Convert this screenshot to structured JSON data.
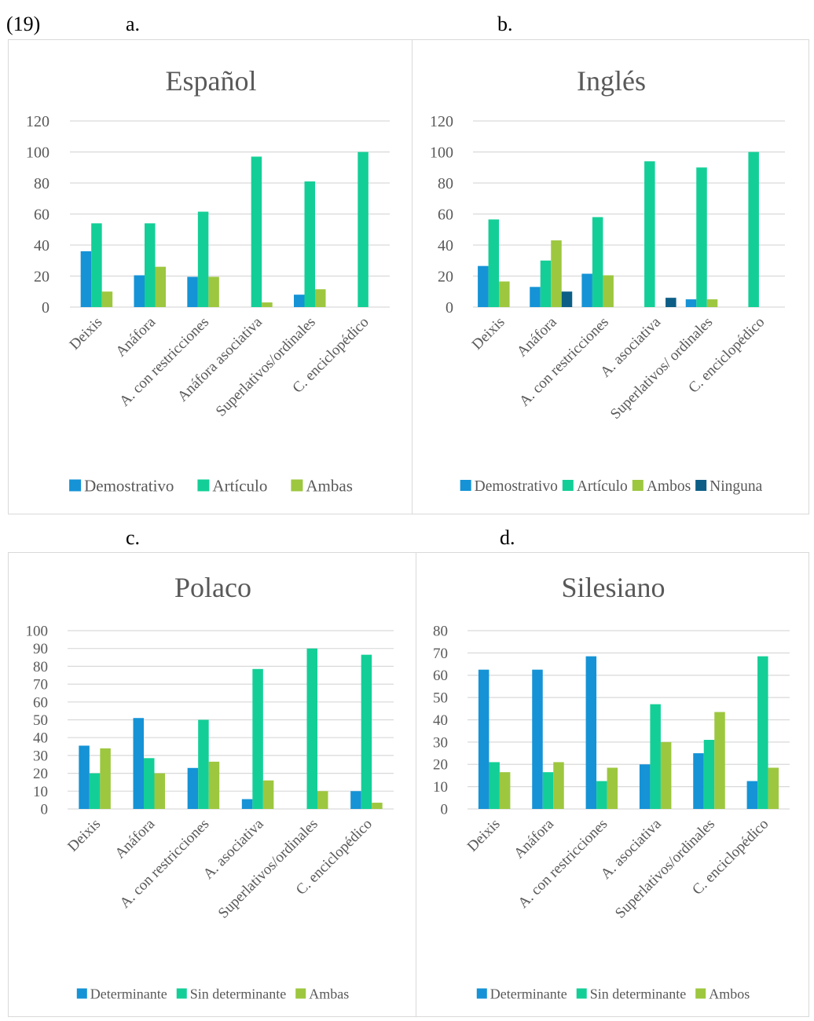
{
  "example_number": "(19)",
  "panel_labels": [
    "a.",
    "b.",
    "c.",
    "d."
  ],
  "colors": {
    "blue": "#1593d6",
    "teal": "#13cf97",
    "green": "#9dc73f",
    "navy": "#0c5e86"
  },
  "chart_data": [
    {
      "type": "bar",
      "title": "Español",
      "categories": [
        "Deixis",
        "Anáfora",
        "A. con restricciones",
        "Anáfora asociativa",
        "Superlativos/ordinales",
        "C. enciclopédico"
      ],
      "series": [
        {
          "name": "Demostrativo",
          "color": "#1593d6",
          "values": [
            36,
            20.5,
            19.5,
            0,
            8,
            0
          ]
        },
        {
          "name": "Artículo",
          "color": "#13cf97",
          "values": [
            54,
            54,
            61.5,
            97,
            81,
            100
          ]
        },
        {
          "name": "Ambas",
          "color": "#9dc73f",
          "values": [
            10,
            26,
            19.5,
            3,
            11.5,
            0
          ]
        }
      ],
      "ylim": [
        0,
        120
      ],
      "yticks": [
        0,
        20,
        40,
        60,
        80,
        100,
        120
      ],
      "grid": true,
      "legend": "bottom",
      "xlabel": "",
      "ylabel": ""
    },
    {
      "type": "bar",
      "title": "Inglés",
      "categories": [
        "Deixis",
        "Anáfora",
        "A. con restricciones",
        "A. asociativa",
        "Superlativos/ ordinales",
        "C. enciclopédico"
      ],
      "series": [
        {
          "name": "Demostrativo",
          "color": "#1593d6",
          "values": [
            26.5,
            13,
            21.5,
            0,
            5,
            0
          ]
        },
        {
          "name": "Artículo",
          "color": "#13cf97",
          "values": [
            56.5,
            30,
            58,
            94,
            90,
            100
          ]
        },
        {
          "name": "Ambos",
          "color": "#9dc73f",
          "values": [
            16.5,
            43,
            20.5,
            0,
            5,
            0
          ]
        },
        {
          "name": "Ninguna",
          "color": "#0c5e86",
          "values": [
            0,
            10,
            0,
            6,
            0,
            0
          ]
        }
      ],
      "ylim": [
        0,
        120
      ],
      "yticks": [
        0,
        20,
        40,
        60,
        80,
        100,
        120
      ],
      "grid": true,
      "legend": "bottom",
      "xlabel": "",
      "ylabel": ""
    },
    {
      "type": "bar",
      "title": "Polaco",
      "categories": [
        "Deixis",
        "Anáfora",
        "A. con restricciones",
        "A. asociativa",
        "Superlativos/ordinales",
        "C. enciclopédico"
      ],
      "series": [
        {
          "name": "Determinante",
          "color": "#1593d6",
          "values": [
            35.5,
            51,
            23,
            5.5,
            0,
            10
          ]
        },
        {
          "name": "Sin determinante",
          "color": "#13cf97",
          "values": [
            20,
            28.5,
            50,
            78.5,
            90,
            86.5
          ]
        },
        {
          "name": "Ambas",
          "color": "#9dc73f",
          "values": [
            34,
            20,
            26.5,
            16,
            10,
            3.5
          ]
        }
      ],
      "ylim": [
        0,
        100
      ],
      "yticks": [
        0,
        10,
        20,
        30,
        40,
        50,
        60,
        70,
        80,
        90,
        100
      ],
      "grid": true,
      "legend": "bottom",
      "xlabel": "",
      "ylabel": ""
    },
    {
      "type": "bar",
      "title": "Silesiano",
      "categories": [
        "Deixis",
        "Anáfora",
        "A. con restricciones",
        "A. asociativa",
        "Superlativos/ordinales",
        "C. enciclopédico"
      ],
      "series": [
        {
          "name": "Determinante",
          "color": "#1593d6",
          "values": [
            62.5,
            62.5,
            68.5,
            20,
            25,
            12.5
          ]
        },
        {
          "name": "Sin determinante",
          "color": "#13cf97",
          "values": [
            21,
            16.5,
            12.5,
            47,
            31,
            68.5
          ]
        },
        {
          "name": "Ambos",
          "color": "#9dc73f",
          "values": [
            16.5,
            21,
            18.5,
            30,
            43.5,
            18.5
          ]
        }
      ],
      "ylim": [
        0,
        80
      ],
      "yticks": [
        0,
        10,
        20,
        30,
        40,
        50,
        60,
        70,
        80
      ],
      "grid": true,
      "legend": "bottom",
      "xlabel": "",
      "ylabel": ""
    }
  ]
}
